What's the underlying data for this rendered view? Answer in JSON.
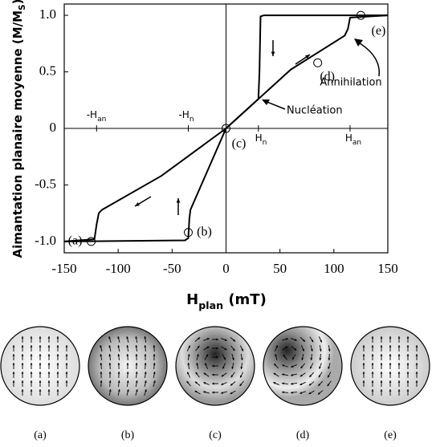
{
  "chart_data": {
    "type": "line",
    "ylabel": [
      "Aimantation planaire moyenne (M/M",
      "S",
      ")"
    ],
    "xlabel": [
      "H",
      "plan",
      " (mT)"
    ],
    "xlim": [
      -150,
      150
    ],
    "xticks": [
      -150,
      -100,
      -50,
      0,
      50,
      100,
      150
    ],
    "ylim": [
      -1.1,
      1.1
    ],
    "yticks": [
      {
        "value": -1.0,
        "label": "-1.0"
      },
      -0.5,
      0,
      0.5,
      {
        "value": 1.0,
        "label": "1.0"
      }
    ],
    "series": [
      {
        "color": "#000000",
        "x": [
          150,
          35,
          32,
          31,
          30,
          0,
          -60,
          -115,
          -118,
          -120,
          -122,
          -150
        ],
        "values": [
          1,
          1,
          0.99,
          0.5,
          0.26,
          0,
          -0.42,
          -0.72,
          -0.75,
          -0.85,
          -0.98,
          -1
        ]
      },
      {
        "color": "#000000",
        "x": [
          -150,
          -38,
          -35,
          -34,
          -33,
          0,
          60,
          110,
          113,
          115,
          150
        ],
        "values": [
          -1,
          -0.99,
          -0.97,
          -0.8,
          -0.72,
          0,
          0.52,
          0.82,
          0.88,
          0.98,
          1
        ]
      }
    ],
    "state_points": {
      "x": [
        -125,
        -35,
        0,
        85,
        125
      ],
      "values": [
        -1,
        -0.92,
        0,
        0.58,
        1
      ],
      "labels": [
        "(a)",
        "(b)",
        "(c)",
        "(d)",
        "(e)"
      ]
    },
    "field_markers": [
      {
        "main": "-H",
        "sub": "an"
      },
      {
        "main": "-H",
        "sub": "n"
      },
      {
        "main": "H",
        "sub": "n"
      },
      {
        "main": "H",
        "sub": "an"
      }
    ],
    "annotations": [
      "Nucléation",
      "Annihilation"
    ],
    "state_images": [
      "(a)",
      "(b)",
      "(c)",
      "(d)",
      "(e)"
    ]
  }
}
